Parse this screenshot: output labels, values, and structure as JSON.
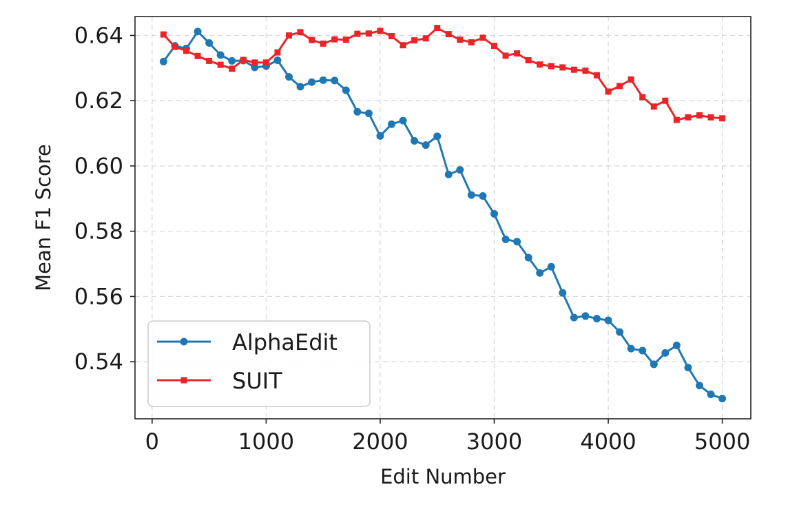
{
  "chart_data": {
    "type": "line",
    "title": "",
    "xlabel": "Edit Number",
    "ylabel": "Mean F1 Score",
    "xlim": [
      -150,
      5250
    ],
    "ylim": [
      0.5225,
      0.6458
    ],
    "xticks": [
      0,
      1000,
      2000,
      3000,
      4000,
      5000
    ],
    "xtick_labels": [
      "0",
      "1000",
      "2000",
      "3000",
      "4000",
      "5000"
    ],
    "yticks": [
      0.54,
      0.56,
      0.58,
      0.6,
      0.62,
      0.64
    ],
    "ytick_labels": [
      "0.54",
      "0.56",
      "0.58",
      "0.60",
      "0.62",
      "0.64"
    ],
    "grid": true,
    "legend_position": "lower-left",
    "x": [
      100,
      200,
      300,
      400,
      500,
      600,
      700,
      800,
      900,
      1000,
      1100,
      1200,
      1300,
      1400,
      1500,
      1600,
      1700,
      1800,
      1900,
      2000,
      2100,
      2200,
      2300,
      2400,
      2500,
      2600,
      2700,
      2800,
      2900,
      3000,
      3100,
      3200,
      3300,
      3400,
      3500,
      3600,
      3700,
      3800,
      3900,
      4000,
      4100,
      4200,
      4300,
      4400,
      4500,
      4600,
      4700,
      4800,
      4900,
      5000
    ],
    "series": [
      {
        "name": "AlphaEdit",
        "color": "#1f77b4",
        "marker": "circle",
        "values": [
          0.632,
          0.6368,
          0.636,
          0.6412,
          0.6377,
          0.634,
          0.6322,
          0.6323,
          0.6302,
          0.6306,
          0.6324,
          0.6273,
          0.6243,
          0.6257,
          0.6263,
          0.6262,
          0.6232,
          0.6166,
          0.6161,
          0.6092,
          0.6128,
          0.6139,
          0.6077,
          0.6064,
          0.6091,
          0.5974,
          0.5988,
          0.5911,
          0.5908,
          0.5853,
          0.5775,
          0.5768,
          0.5719,
          0.5672,
          0.5691,
          0.5611,
          0.5535,
          0.554,
          0.5532,
          0.5527,
          0.5491,
          0.544,
          0.5434,
          0.5392,
          0.5427,
          0.545,
          0.5382,
          0.5327,
          0.53,
          0.5287
        ]
      },
      {
        "name": "SUIT",
        "color": "#e8262a",
        "marker": "square",
        "values": [
          0.6403,
          0.6365,
          0.6353,
          0.6337,
          0.6322,
          0.631,
          0.6298,
          0.6325,
          0.6317,
          0.6317,
          0.6348,
          0.64,
          0.641,
          0.6386,
          0.6375,
          0.6388,
          0.6387,
          0.6405,
          0.6406,
          0.6414,
          0.6398,
          0.637,
          0.6385,
          0.6391,
          0.6423,
          0.6404,
          0.6387,
          0.6379,
          0.6393,
          0.6368,
          0.6338,
          0.6345,
          0.6324,
          0.6311,
          0.6306,
          0.6302,
          0.6295,
          0.6292,
          0.6278,
          0.6228,
          0.6245,
          0.6265,
          0.6211,
          0.6182,
          0.62,
          0.6141,
          0.6149,
          0.6155,
          0.6149,
          0.6146
        ]
      }
    ]
  }
}
